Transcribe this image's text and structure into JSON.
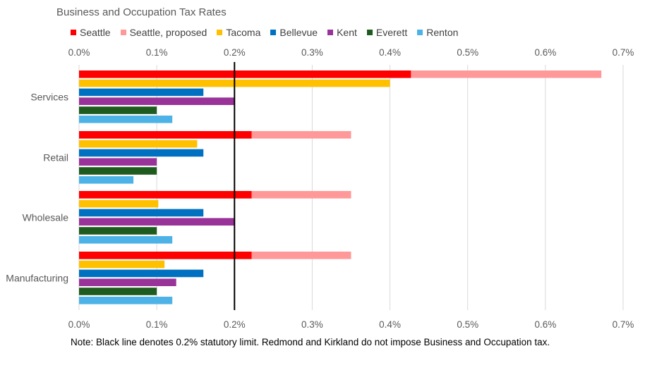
{
  "chart_data": {
    "type": "bar",
    "orientation": "horizontal",
    "title": "Business and Occupation Tax Rates",
    "categories": [
      "Services",
      "Retail",
      "Wholesale",
      "Manufacturing"
    ],
    "series": [
      {
        "name": "Seattle",
        "color": "#ff0000",
        "values": [
          0.427,
          0.222,
          0.222,
          0.222
        ]
      },
      {
        "name": "Seattle, proposed",
        "color": "#ff9999",
        "values": [
          0.672,
          0.35,
          0.35,
          0.35
        ],
        "stacked_behind": "Seattle"
      },
      {
        "name": "Tacoma",
        "color": "#ffc000",
        "values": [
          0.4,
          0.152,
          0.102,
          0.11
        ]
      },
      {
        "name": "Bellevue",
        "color": "#0070c0",
        "values": [
          0.16,
          0.16,
          0.16,
          0.16
        ]
      },
      {
        "name": "Kent",
        "color": "#993399",
        "values": [
          0.2,
          0.1,
          0.2,
          0.125
        ]
      },
      {
        "name": "Everett",
        "color": "#1e5b1e",
        "values": [
          0.1,
          0.1,
          0.1,
          0.1
        ]
      },
      {
        "name": "Renton",
        "color": "#4db3e6",
        "values": [
          0.12,
          0.07,
          0.12,
          0.12
        ]
      }
    ],
    "xlim": [
      0,
      0.7
    ],
    "ticks": [
      0,
      0.1,
      0.2,
      0.3,
      0.4,
      0.5,
      0.6,
      0.7
    ],
    "tick_labels": [
      "0.0%",
      "0.1%",
      "0.2%",
      "0.3%",
      "0.4%",
      "0.5%",
      "0.6%",
      "0.7%"
    ],
    "axis_labels_top_and_bottom": true,
    "reference_line": {
      "value": 0.2,
      "color": "#000000"
    },
    "grid": "vertical",
    "legend_position": "top",
    "note": "Note: Black line denotes 0.2% statutory limit. Redmond and Kirkland do not impose Business and Occupation tax."
  }
}
